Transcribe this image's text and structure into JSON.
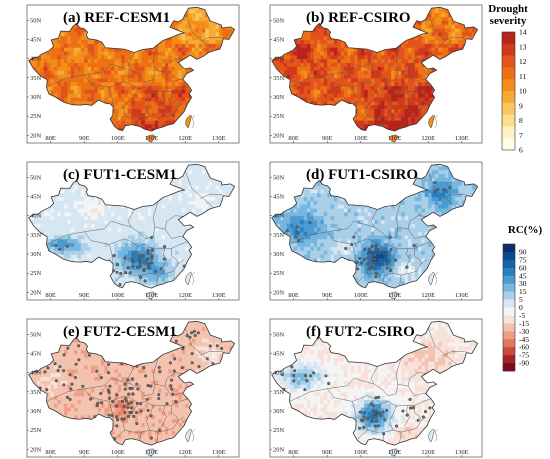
{
  "panels": [
    {
      "title": "(a) REF-CESM1",
      "scale": "severity",
      "mode": "warm"
    },
    {
      "title": "(b) REF-CSIRO",
      "scale": "severity",
      "mode": "hot"
    },
    {
      "title": "(c) FUT1-CESM1",
      "scale": "rc",
      "mode": "wetB"
    },
    {
      "title": "(d) FUT1-CSIRO",
      "scale": "rc",
      "mode": "wetD"
    },
    {
      "title": "(e) FUT2-CESM1",
      "scale": "rc",
      "mode": "dryE"
    },
    {
      "title": "(f) FUT2-CSIRO",
      "scale": "rc",
      "mode": "mixF"
    }
  ],
  "lon_ticks": [
    "80E",
    "90E",
    "100E",
    "110E",
    "120E",
    "130E"
  ],
  "lat_ticks": [
    "50N",
    "45N",
    "40N",
    "35N",
    "30N",
    "25N",
    "20N"
  ],
  "severity_bar": {
    "title_line1": "Drought",
    "title_line2": "severity",
    "labels": [
      "14",
      "13",
      "12",
      "11",
      "10",
      "9",
      "8",
      "7",
      "6"
    ],
    "colors": [
      "#b8231b",
      "#cf3a1c",
      "#e2541c",
      "#ec7016",
      "#f38e1b",
      "#f7aa31",
      "#fac55c",
      "#fbdd8c",
      "#fdf1c4",
      "#fffde8"
    ]
  },
  "rc_bar": {
    "title": "RC(%)",
    "labels": [
      "90",
      "75",
      "60",
      "45",
      "30",
      "15",
      "5",
      "0",
      "-5",
      "-15",
      "-30",
      "-45",
      "-60",
      "-75",
      "-90"
    ],
    "colors": [
      "#08306b",
      "#0c4a8c",
      "#1663aa",
      "#2b7fc0",
      "#4b9bd1",
      "#77b6de",
      "#aacfe8",
      "#d6e6f2",
      "#f4f4f4",
      "#f8e1d9",
      "#f4c3b0",
      "#ee9e85",
      "#e07760",
      "#cc4a3c",
      "#a8202a",
      "#7a0a1c"
    ]
  }
}
